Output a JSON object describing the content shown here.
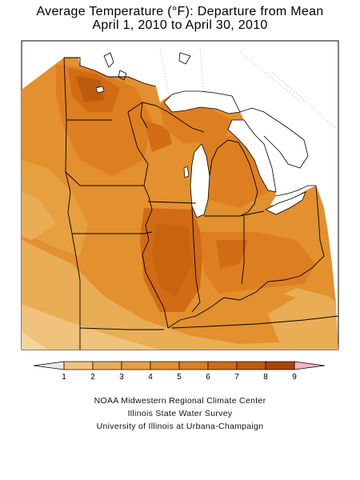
{
  "title": {
    "line1": "Average Temperature (°F): Departure from Mean",
    "line2": "April 1, 2010 to April 30, 2010"
  },
  "legend": {
    "tick_labels": [
      "1",
      "2",
      "3",
      "4",
      "5",
      "6",
      "7",
      "8",
      "9"
    ],
    "bins": [
      {
        "from": 1,
        "to": 2,
        "color": "#f0c27b"
      },
      {
        "from": 2,
        "to": 3,
        "color": "#e9ad56"
      },
      {
        "from": 3,
        "to": 4,
        "color": "#e7a040"
      },
      {
        "from": 4,
        "to": 5,
        "color": "#e3902e"
      },
      {
        "from": 5,
        "to": 6,
        "color": "#dd7f20"
      },
      {
        "from": 6,
        "to": 7,
        "color": "#d16b14"
      },
      {
        "from": 7,
        "to": 8,
        "color": "#bd5a0d"
      },
      {
        "from": 8,
        "to": 9,
        "color": "#a84408"
      }
    ],
    "below_color": "#e8e8e8",
    "above_color": "#f6b3c0"
  },
  "credits": {
    "line1": "NOAA Midwestern Regional Climate Center",
    "line2": "Illinois State Water Survey",
    "line3": "University of Illinois at Urbana-Champaign"
  },
  "colors": {
    "water": "#ffffff",
    "border": "#000000"
  }
}
